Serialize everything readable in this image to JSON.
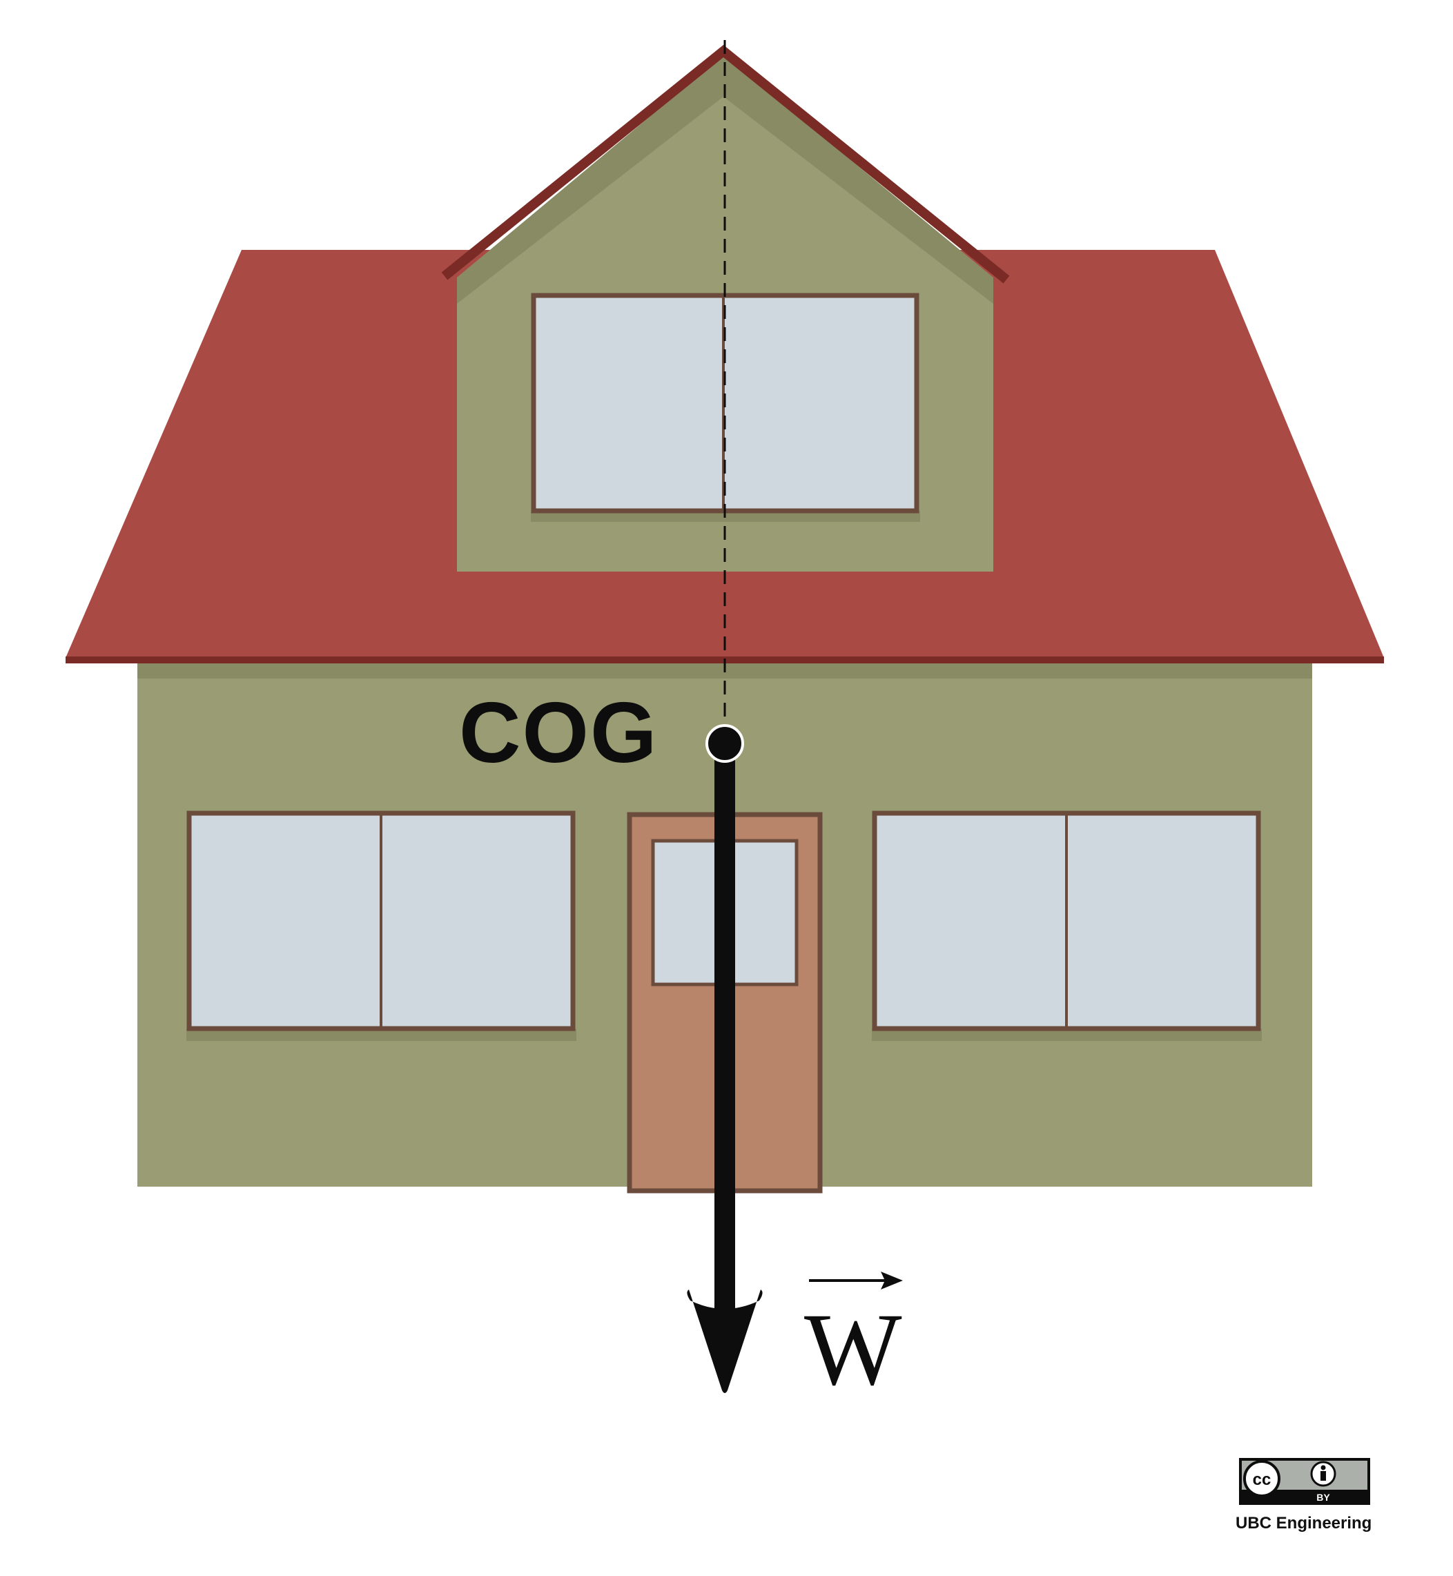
{
  "diagram": {
    "cog_label": "COG",
    "weight_label": "W",
    "vector_arrow": true
  },
  "license": {
    "icon": "cc-by-icon",
    "by_text": "BY",
    "credit": "UBC Engineering"
  },
  "colors": {
    "roof": "#A94A44",
    "roof_edge": "#7A2B26",
    "wall": "#9A9D73",
    "wall_shadow": "#888B63",
    "window_glass": "#D0D8DF",
    "frame": "#6B4B3C",
    "door": "#B9856A",
    "force": "#0d0d0d"
  }
}
